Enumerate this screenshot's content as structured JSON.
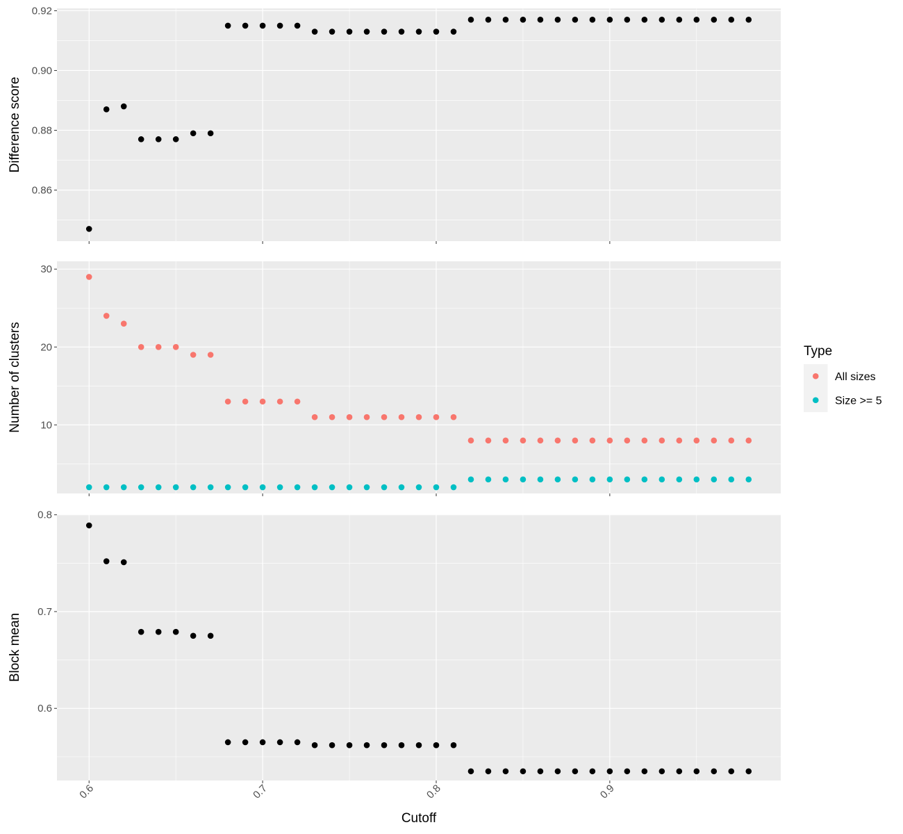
{
  "chart_data": {
    "type": "scatter",
    "x_axis": {
      "label": "Cutoff",
      "ticks": [
        0.6,
        0.7,
        0.8,
        0.9
      ],
      "tick_labels": [
        "0.6",
        "0.7",
        "0.8",
        "0.9"
      ],
      "range": [
        0.5815,
        0.9985
      ]
    },
    "x": [
      0.6,
      0.61,
      0.62,
      0.63,
      0.64,
      0.65,
      0.66,
      0.67,
      0.68,
      0.69,
      0.7,
      0.71,
      0.72,
      0.73,
      0.74,
      0.75,
      0.76,
      0.77,
      0.78,
      0.79,
      0.8,
      0.81,
      0.82,
      0.83,
      0.84,
      0.85,
      0.86,
      0.87,
      0.88,
      0.89,
      0.9,
      0.91,
      0.92,
      0.93,
      0.94,
      0.95,
      0.96,
      0.97,
      0.98
    ],
    "grid": true,
    "legend": {
      "title": "Type",
      "position": "right",
      "entries": [
        {
          "label": "All sizes",
          "color": "#F8766D"
        },
        {
          "label": "Size >= 5",
          "color": "#00BFC4"
        }
      ]
    },
    "panels": [
      {
        "ylabel": "Difference score",
        "ylim": [
          0.8429,
          0.9208
        ],
        "yticks": [
          0.86,
          0.88,
          0.9,
          0.92
        ],
        "ytick_labels": [
          "0.86",
          "0.88",
          "0.90",
          "0.92"
        ],
        "series": [
          {
            "color": "#000000",
            "values": [
              0.847,
              0.887,
              0.888,
              0.877,
              0.877,
              0.877,
              0.879,
              0.879,
              0.915,
              0.915,
              0.915,
              0.915,
              0.915,
              0.913,
              0.913,
              0.913,
              0.913,
              0.913,
              0.913,
              0.913,
              0.913,
              0.913,
              0.917,
              0.917,
              0.917,
              0.917,
              0.917,
              0.917,
              0.917,
              0.917,
              0.917,
              0.917,
              0.917,
              0.917,
              0.917,
              0.917,
              0.917,
              0.917,
              0.917
            ]
          }
        ]
      },
      {
        "ylabel": "Number of clusters",
        "ylim": [
          1.2,
          31.0
        ],
        "yticks": [
          10,
          20,
          30
        ],
        "ytick_labels": [
          "10",
          "20",
          "30"
        ],
        "series": [
          {
            "name": "All sizes",
            "color": "#F8766D",
            "values": [
              29,
              24,
              23,
              20,
              20,
              20,
              19,
              19,
              13,
              13,
              13,
              13,
              13,
              11,
              11,
              11,
              11,
              11,
              11,
              11,
              11,
              11,
              8,
              8,
              8,
              8,
              8,
              8,
              8,
              8,
              8,
              8,
              8,
              8,
              8,
              8,
              8,
              8,
              8
            ]
          },
          {
            "name": "Size >= 5",
            "color": "#00BFC4",
            "values": [
              2,
              2,
              2,
              2,
              2,
              2,
              2,
              2,
              2,
              2,
              2,
              2,
              2,
              2,
              2,
              2,
              2,
              2,
              2,
              2,
              2,
              2,
              3,
              3,
              3,
              3,
              3,
              3,
              3,
              3,
              3,
              3,
              3,
              3,
              3,
              3,
              3,
              3,
              3
            ]
          }
        ]
      },
      {
        "ylabel": "Block mean",
        "ylim": [
          0.5255,
          0.8005
        ],
        "yticks": [
          0.6,
          0.7,
          0.8
        ],
        "ytick_labels": [
          "0.6",
          "0.7",
          "0.8"
        ],
        "series": [
          {
            "color": "#000000",
            "values": [
              0.789,
              0.752,
              0.751,
              0.679,
              0.679,
              0.679,
              0.675,
              0.675,
              0.565,
              0.565,
              0.565,
              0.565,
              0.565,
              0.562,
              0.562,
              0.562,
              0.562,
              0.562,
              0.562,
              0.562,
              0.562,
              0.562,
              0.535,
              0.535,
              0.535,
              0.535,
              0.535,
              0.535,
              0.535,
              0.535,
              0.535,
              0.535,
              0.535,
              0.535,
              0.535,
              0.535,
              0.535,
              0.535,
              0.535
            ]
          }
        ]
      }
    ]
  }
}
